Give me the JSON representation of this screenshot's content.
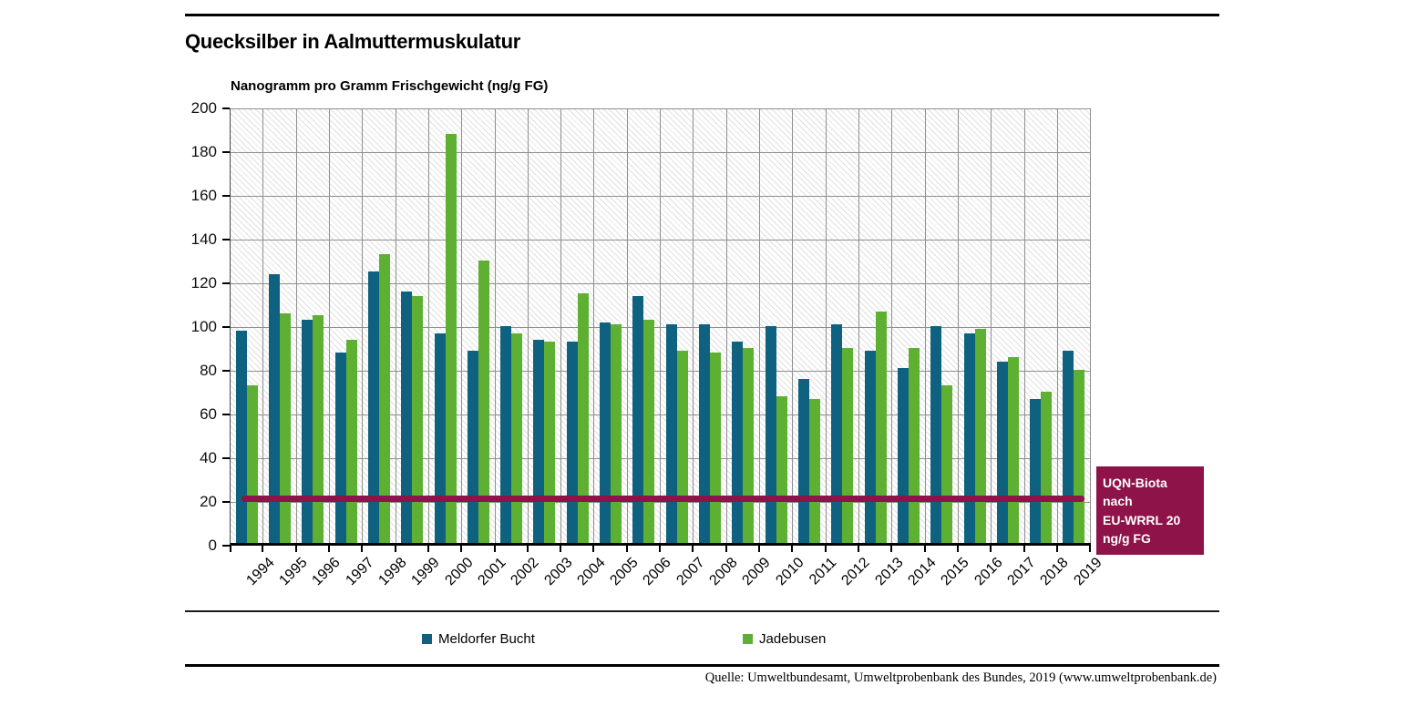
{
  "title": "Quecksilber in Aalmuttermuskulatur",
  "axis_title": "Nanogramm pro Gramm Frischgewicht (ng/g FG)",
  "threshold_label": "UQN-Biota nach\nEU-WRRL 20\nng/g FG",
  "source": "Quelle: Umweltbundesamt, Umweltprobenbank des Bundes, 2019 (www.umweltprobenbank.de)",
  "legend": [
    {
      "label": "Meldorfer Bucht",
      "color": "#0E627F"
    },
    {
      "label": "Jadebusen",
      "color": "#5EB032"
    }
  ],
  "colors": {
    "series_blue": "#0E627F",
    "series_green": "#5EB032",
    "threshold": "#8E1348",
    "gridline": "#8f8f8f"
  },
  "chart_data": {
    "type": "bar",
    "title": "Quecksilber in Aalmuttermuskulatur",
    "ylabel": "Nanogramm pro Gramm Frischgewicht (ng/g FG)",
    "xlabel": "",
    "ylim": [
      0,
      200
    ],
    "ytick_step": 20,
    "grid": true,
    "background": "diagonal-hatch",
    "legend_position": "bottom",
    "categories": [
      "1994",
      "1995",
      "1996",
      "1997",
      "1998",
      "1999",
      "2000",
      "2001",
      "2002",
      "2003",
      "2004",
      "2005",
      "2006",
      "2007",
      "2008",
      "2009",
      "2010",
      "2011",
      "2012",
      "2013",
      "2014",
      "2015",
      "2016",
      "2017",
      "2018",
      "2019"
    ],
    "series": [
      {
        "name": "Meldorfer Bucht",
        "color": "#0E627F",
        "values": [
          97,
          123,
          102,
          87,
          124,
          115,
          96,
          88,
          99,
          93,
          92,
          101,
          113,
          100,
          100,
          92,
          99,
          75,
          100,
          88,
          80,
          99,
          96,
          83,
          66,
          88
        ]
      },
      {
        "name": "Jadebusen",
        "color": "#5EB032",
        "values": [
          72,
          105,
          104,
          93,
          132,
          113,
          187,
          129,
          96,
          92,
          114,
          100,
          102,
          88,
          87,
          89,
          67,
          66,
          89,
          106,
          89,
          72,
          98,
          85,
          69,
          79
        ]
      }
    ],
    "threshold": {
      "value": 20,
      "label": "UQN-Biota nach EU-WRRL 20 ng/g FG",
      "color": "#8E1348"
    }
  }
}
